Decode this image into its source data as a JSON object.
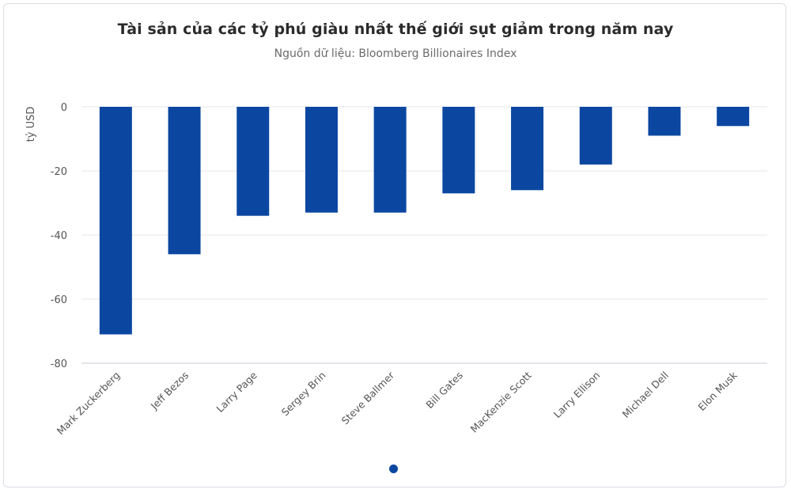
{
  "chart_data": {
    "type": "bar",
    "title": "Tài sản của các tỷ phú giàu nhất thế giới sụt giảm trong năm nay",
    "subtitle": "Nguồn dữ liệu: Bloomberg Billionaires Index",
    "xlabel": "",
    "ylabel": "tỷ USD",
    "ylim": [
      -80,
      0
    ],
    "yticks": [
      0,
      -20,
      -40,
      -60,
      -80
    ],
    "grid": true,
    "bar_color": "#0b47a1",
    "categories": [
      "Mark Zuckerberg",
      "Jeff Bezos",
      "Larry Page",
      "Sergey Brin",
      "Steve Ballmer",
      "Bill Gates",
      "MacKenzie Scott",
      "Larry Ellison",
      "Michael Dell",
      "Elon Musk"
    ],
    "values": [
      -71,
      -46,
      -34,
      -33,
      -33,
      -27,
      -26,
      -18,
      -9,
      -6
    ]
  },
  "colors": {
    "accent": "#0b47a1",
    "grid": "#e3e6ea",
    "axis_text": "#555555"
  }
}
